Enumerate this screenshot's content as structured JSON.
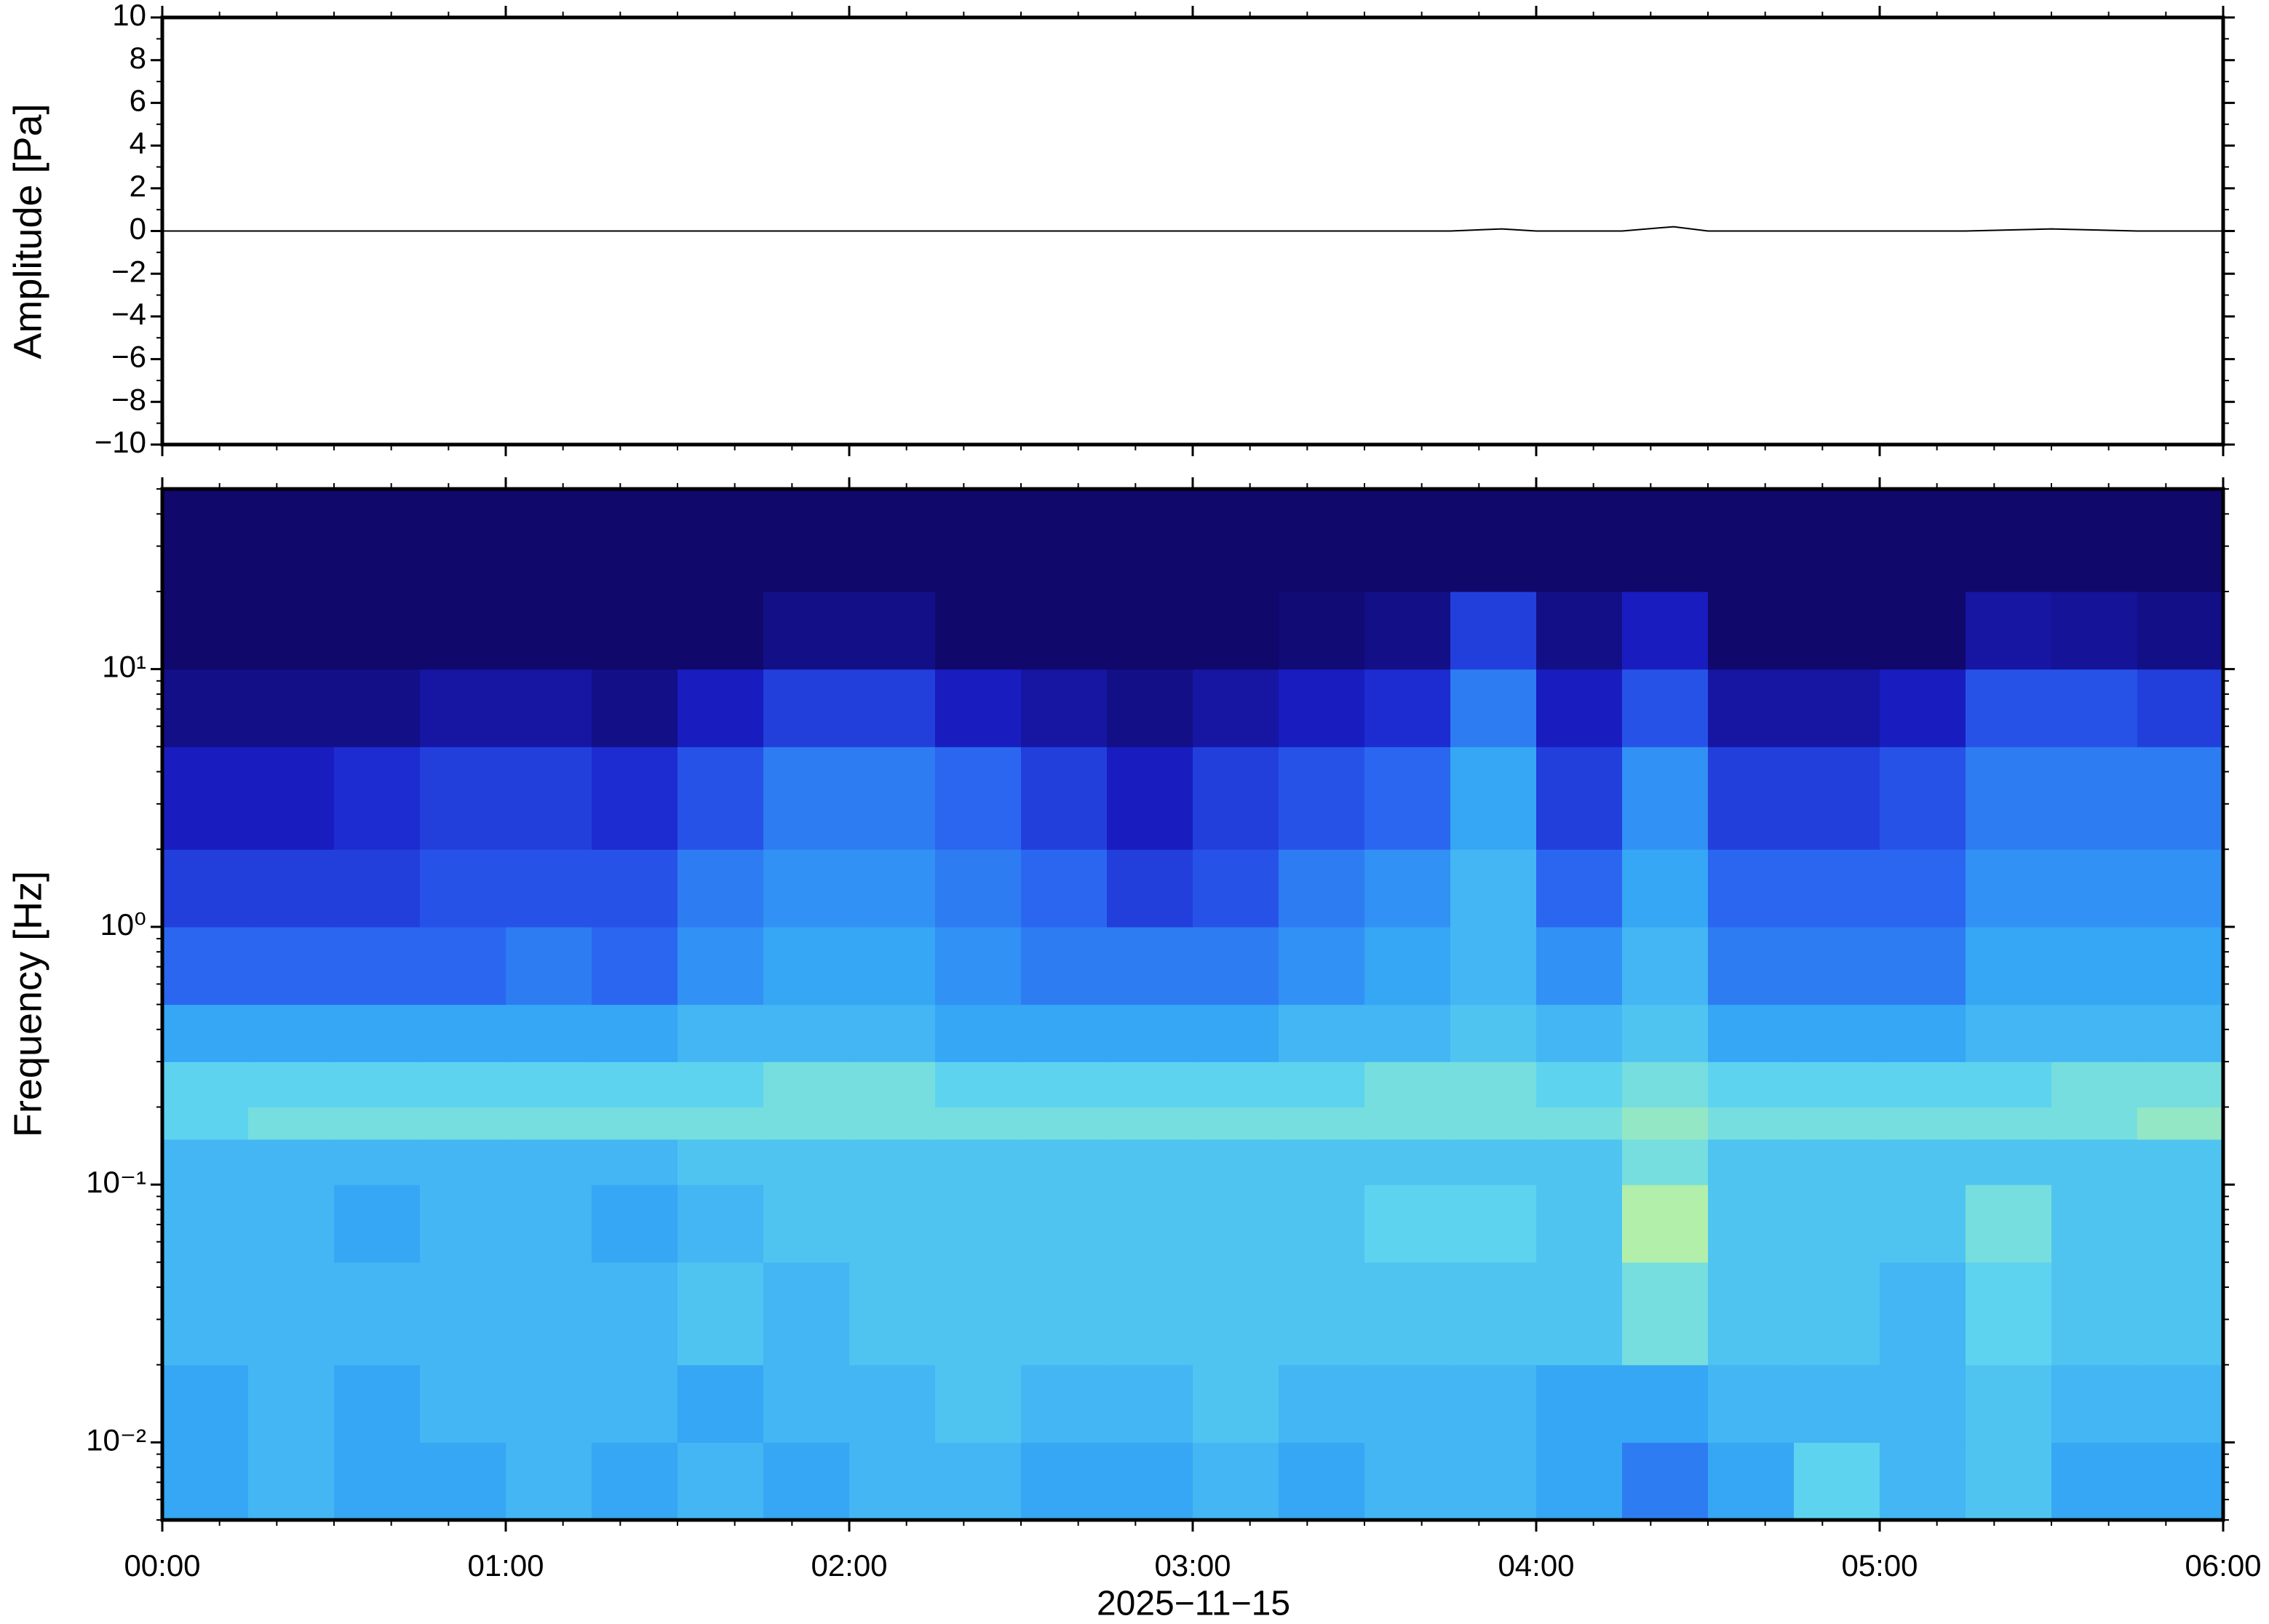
{
  "chart_data": [
    {
      "type": "line",
      "ylabel": "Amplitude [Pa]",
      "x": [
        0,
        0.25,
        0.5,
        0.75,
        1,
        1.25,
        1.5,
        1.75,
        2,
        2.25,
        2.5,
        2.75,
        3,
        3.25,
        3.5,
        3.75,
        3.9,
        4,
        4.25,
        4.4,
        4.5,
        4.75,
        5,
        5.25,
        5.5,
        5.75,
        6
      ],
      "values": [
        0,
        0,
        0,
        0,
        0,
        0,
        0,
        0,
        0,
        0,
        0,
        0,
        0,
        0,
        0,
        0,
        0.1,
        0,
        0,
        0.2,
        0,
        0,
        0,
        0,
        0.1,
        0,
        0
      ],
      "color": "#000000",
      "xlim": [
        0,
        6
      ],
      "ylim": [
        -10,
        10
      ],
      "yticks": [
        {
          "value": -10,
          "label": "−10"
        },
        {
          "value": -8,
          "label": "−8"
        },
        {
          "value": -6,
          "label": "−6"
        },
        {
          "value": -4,
          "label": "−4"
        },
        {
          "value": -2,
          "label": "−2"
        },
        0,
        2,
        4,
        6,
        8,
        10
      ]
    },
    {
      "type": "heatmap",
      "ylabel": "Frequency [Hz]",
      "xlabel": "2025−11−15",
      "log_y": true,
      "xlim": [
        0,
        6
      ],
      "ylim": [
        0.005,
        50
      ],
      "xticks": [
        {
          "value": 0,
          "label": "00:00"
        },
        {
          "value": 1,
          "label": "01:00"
        },
        {
          "value": 2,
          "label": "02:00"
        },
        {
          "value": 3,
          "label": "03:00"
        },
        {
          "value": 4,
          "label": "04:00"
        },
        {
          "value": 5,
          "label": "05:00"
        },
        {
          "value": 6,
          "label": "06:00"
        }
      ],
      "yticks": [
        {
          "value": 0.01,
          "label": "10⁻²"
        },
        {
          "value": 0.1,
          "label": "10⁻¹"
        },
        {
          "value": 1,
          "label": "10⁰"
        },
        {
          "value": 10,
          "label": "10¹"
        }
      ],
      "x_bins": [
        0,
        0.25,
        0.5,
        0.75,
        1,
        1.25,
        1.5,
        1.75,
        2,
        2.25,
        2.5,
        2.75,
        3,
        3.25,
        3.5,
        3.75,
        4,
        4.25,
        4.5,
        4.75,
        5,
        5.25,
        5.5,
        5.75,
        6
      ],
      "y_bins": [
        0.005,
        0.01,
        0.02,
        0.05,
        0.1,
        0.15,
        0.2,
        0.3,
        0.5,
        1,
        2,
        5,
        10,
        20,
        50
      ],
      "colormap": [
        "#10086b",
        "#1a1fc8",
        "#2a5ff0",
        "#35a7f5",
        "#62d8ef",
        "#c6f59a",
        "#e8f88a"
      ],
      "zlim": [
        0,
        1
      ],
      "z": [
        [
          0.5,
          0.55,
          0.5,
          0.5,
          0.55,
          0.5,
          0.55,
          0.5,
          0.55,
          0.55,
          0.5,
          0.5,
          0.55,
          0.5,
          0.55,
          0.55,
          0.5,
          0.4,
          0.5,
          0.65,
          0.55,
          0.6,
          0.5,
          0.5
        ],
        [
          0.5,
          0.55,
          0.5,
          0.55,
          0.55,
          0.55,
          0.5,
          0.55,
          0.55,
          0.6,
          0.55,
          0.55,
          0.6,
          0.55,
          0.55,
          0.55,
          0.5,
          0.5,
          0.55,
          0.55,
          0.55,
          0.6,
          0.55,
          0.55
        ],
        [
          0.55,
          0.55,
          0.55,
          0.55,
          0.55,
          0.55,
          0.6,
          0.55,
          0.6,
          0.6,
          0.6,
          0.6,
          0.6,
          0.6,
          0.6,
          0.6,
          0.6,
          0.7,
          0.6,
          0.6,
          0.55,
          0.65,
          0.6,
          0.6
        ],
        [
          0.55,
          0.55,
          0.5,
          0.55,
          0.55,
          0.5,
          0.55,
          0.6,
          0.6,
          0.6,
          0.6,
          0.6,
          0.6,
          0.6,
          0.65,
          0.65,
          0.6,
          0.8,
          0.6,
          0.6,
          0.6,
          0.7,
          0.6,
          0.6
        ],
        [
          0.55,
          0.55,
          0.55,
          0.55,
          0.55,
          0.55,
          0.6,
          0.6,
          0.6,
          0.6,
          0.6,
          0.6,
          0.6,
          0.6,
          0.6,
          0.6,
          0.6,
          0.7,
          0.6,
          0.6,
          0.6,
          0.6,
          0.6,
          0.6
        ],
        [
          0.65,
          0.7,
          0.7,
          0.7,
          0.7,
          0.7,
          0.7,
          0.7,
          0.7,
          0.7,
          0.7,
          0.7,
          0.7,
          0.7,
          0.7,
          0.7,
          0.7,
          0.75,
          0.7,
          0.7,
          0.7,
          0.7,
          0.7,
          0.75
        ],
        [
          0.65,
          0.65,
          0.65,
          0.65,
          0.65,
          0.65,
          0.65,
          0.7,
          0.7,
          0.65,
          0.65,
          0.65,
          0.65,
          0.65,
          0.7,
          0.7,
          0.65,
          0.7,
          0.65,
          0.65,
          0.65,
          0.65,
          0.7,
          0.7
        ],
        [
          0.5,
          0.5,
          0.5,
          0.5,
          0.5,
          0.5,
          0.55,
          0.55,
          0.55,
          0.5,
          0.5,
          0.5,
          0.5,
          0.55,
          0.55,
          0.6,
          0.55,
          0.6,
          0.5,
          0.5,
          0.5,
          0.55,
          0.55,
          0.55
        ],
        [
          0.35,
          0.35,
          0.35,
          0.35,
          0.4,
          0.35,
          0.45,
          0.5,
          0.5,
          0.45,
          0.4,
          0.4,
          0.4,
          0.45,
          0.5,
          0.55,
          0.45,
          0.55,
          0.4,
          0.4,
          0.4,
          0.5,
          0.5,
          0.5
        ],
        [
          0.25,
          0.25,
          0.25,
          0.3,
          0.3,
          0.3,
          0.4,
          0.45,
          0.45,
          0.4,
          0.35,
          0.25,
          0.3,
          0.4,
          0.45,
          0.55,
          0.35,
          0.5,
          0.35,
          0.35,
          0.35,
          0.45,
          0.45,
          0.45
        ],
        [
          0.15,
          0.15,
          0.2,
          0.25,
          0.25,
          0.2,
          0.3,
          0.4,
          0.4,
          0.35,
          0.25,
          0.15,
          0.25,
          0.3,
          0.35,
          0.5,
          0.25,
          0.45,
          0.25,
          0.25,
          0.3,
          0.4,
          0.4,
          0.4
        ],
        [
          0.05,
          0.05,
          0.05,
          0.1,
          0.1,
          0.05,
          0.15,
          0.25,
          0.25,
          0.15,
          0.1,
          0.05,
          0.1,
          0.15,
          0.2,
          0.4,
          0.15,
          0.3,
          0.1,
          0.1,
          0.15,
          0.3,
          0.3,
          0.25
        ],
        [
          0,
          0,
          0,
          0,
          0,
          0,
          0,
          0.05,
          0.05,
          0,
          0,
          0,
          0,
          0.02,
          0.05,
          0.25,
          0.05,
          0.15,
          0,
          0,
          0,
          0.1,
          0.08,
          0.05
        ],
        [
          0,
          0,
          0,
          0,
          0,
          0,
          0,
          0,
          0,
          0,
          0,
          0,
          0,
          0,
          0,
          0,
          0,
          0,
          0,
          0,
          0,
          0,
          0,
          0
        ]
      ]
    }
  ]
}
